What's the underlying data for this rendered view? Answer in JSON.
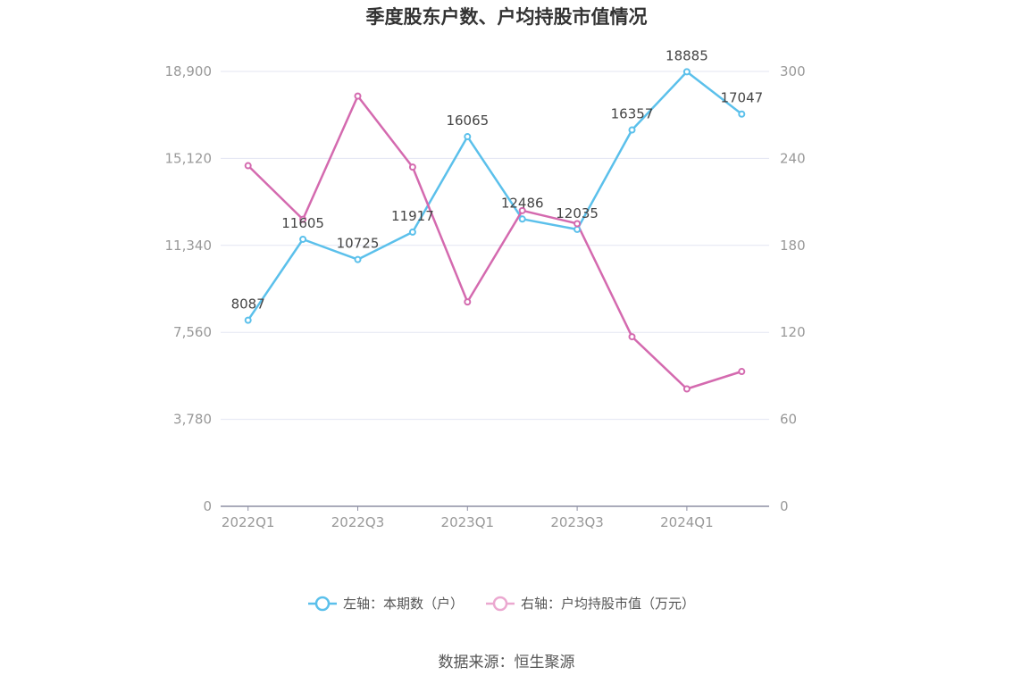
{
  "chart_data": {
    "type": "line",
    "title": "季度股东户数、户均持股市值情况",
    "categories": [
      "2022Q1",
      "2022Q2",
      "2022Q3",
      "2022Q4",
      "2023Q1",
      "2023Q2",
      "2023Q3",
      "2023Q4",
      "2024Q1",
      "2024Q2"
    ],
    "x_tick_labels": [
      "2022Q1",
      "2022Q3",
      "2023Q1",
      "2023Q3",
      "2024Q1"
    ],
    "y_left": {
      "ylim": [
        0,
        18900
      ],
      "ticks": [
        "0",
        "3,780",
        "7,560",
        "11,340",
        "15,120",
        "18,900"
      ]
    },
    "y_right": {
      "ylim": [
        0,
        300
      ],
      "ticks": [
        "0",
        "60",
        "120",
        "180",
        "240",
        "300"
      ]
    },
    "grid": true,
    "legend_position": "bottom",
    "series": [
      {
        "name": "左轴：本期数（户）",
        "axis": "left",
        "color": "#5bc0eb",
        "values": [
          8087,
          11605,
          10725,
          11917,
          16065,
          12486,
          12035,
          16357,
          18885,
          17047
        ],
        "labels": [
          "8087",
          "11605",
          "10725",
          "11917",
          "16065",
          "12486",
          "12035",
          "16357",
          "18885",
          "17047"
        ]
      },
      {
        "name": "右轴：户均持股市值（万元）",
        "axis": "right",
        "color": "#d46aaf",
        "values": [
          235,
          198,
          283,
          234,
          141,
          204,
          195,
          117,
          81,
          93
        ]
      }
    ],
    "source": "数据来源：恒生聚源"
  }
}
